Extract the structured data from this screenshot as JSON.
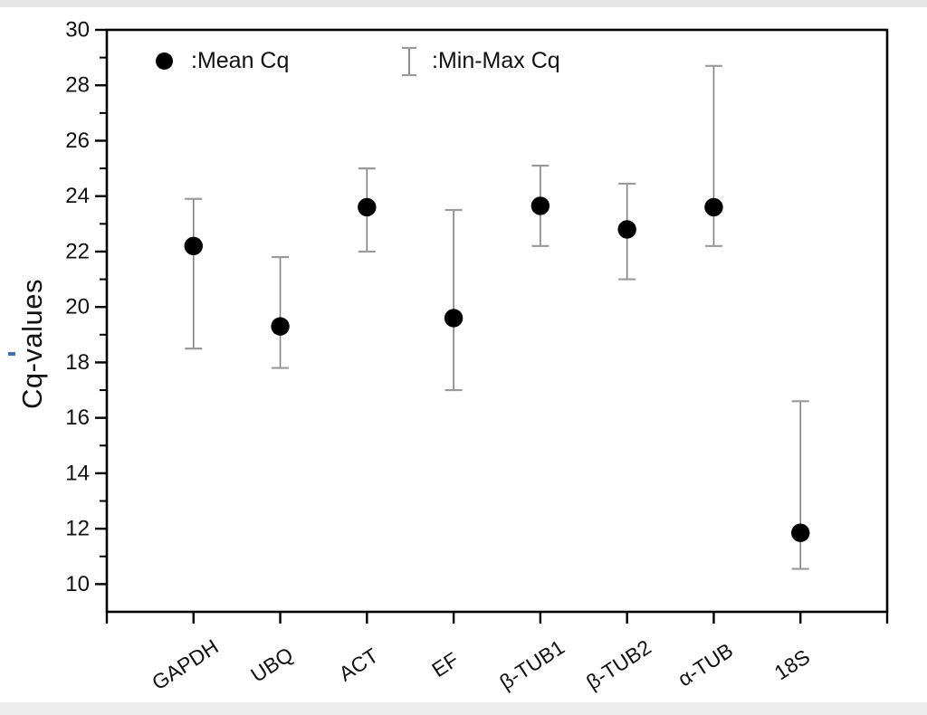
{
  "figure": {
    "ylabel": "Cq-values",
    "legend": {
      "mean": {
        "label": ":Mean Cq",
        "marker": "filled-circle"
      },
      "minmax": {
        "label": ":Min-Max Cq",
        "marker": "error-bar"
      }
    }
  },
  "chart_data": {
    "type": "scatter",
    "title": "",
    "xlabel": "",
    "ylabel": "Cq-values",
    "categories": [
      "GAPDH",
      "UBQ",
      "ACT",
      "EF",
      "β-TUB1",
      "β-TUB2",
      "α-TUB",
      "18S"
    ],
    "series": [
      {
        "name": "Mean Cq",
        "marker": "filled-circle",
        "values": [
          22.2,
          19.3,
          23.6,
          19.6,
          23.65,
          22.8,
          23.6,
          11.85
        ]
      },
      {
        "name": "Min Cq",
        "values": [
          18.5,
          17.8,
          22.0,
          17.0,
          22.2,
          21.0,
          22.2,
          10.55
        ]
      },
      {
        "name": "Max Cq",
        "values": [
          23.9,
          21.8,
          25.0,
          23.5,
          25.1,
          24.45,
          28.7,
          16.6
        ]
      }
    ],
    "ylim": [
      9,
      30
    ],
    "yticks": [
      10,
      12,
      14,
      16,
      18,
      20,
      22,
      24,
      26,
      28,
      30
    ],
    "yticks_minor": [
      9,
      11,
      13,
      15,
      17,
      19,
      21,
      23,
      25,
      27,
      29
    ],
    "xtick_rotation_deg": -33,
    "legend_position": "top-inside",
    "grid": false,
    "colors": {
      "marker": "#000000",
      "errorbar": "#828282",
      "errorbar_cap": "#9a9a9a",
      "axis": "#000000",
      "text": "#111111",
      "background": "#ffffff",
      "page_edge": "#e6e6e6",
      "artifact_blue": "#4170b4"
    }
  }
}
